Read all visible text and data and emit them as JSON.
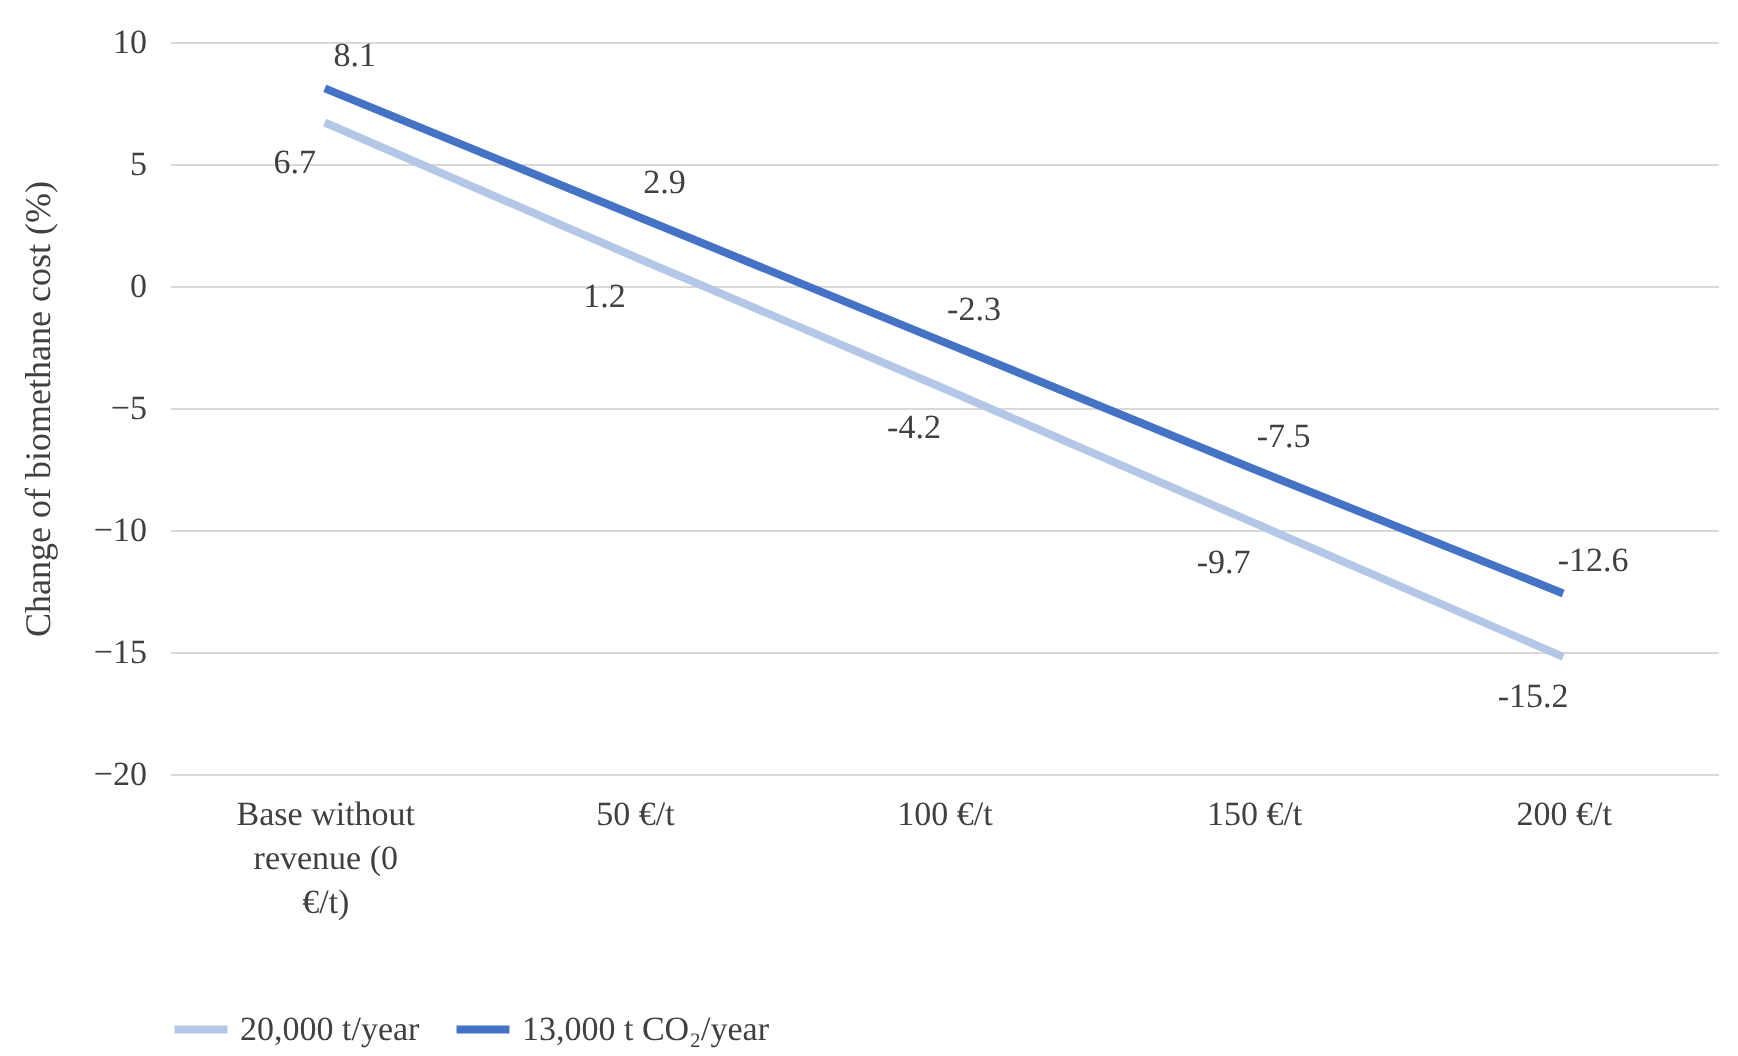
{
  "chart_data": {
    "type": "line",
    "ylabel": "Change of biomethane cost (%)",
    "categories": [
      "Base without revenue (0 €/t)",
      "50 €/t",
      "100 €/t",
      "150 €/t",
      "200 €/t"
    ],
    "series": [
      {
        "name": "20,000 t/year",
        "color": "#b4c7e7",
        "values": [
          6.7,
          1.2,
          -4.2,
          -9.7,
          -15.2
        ]
      },
      {
        "name": "13,000 t CO₂/year",
        "color": "#4472c4",
        "values": [
          8.1,
          2.9,
          -2.3,
          -7.5,
          -12.6
        ]
      }
    ],
    "ylim": [
      -20,
      10
    ],
    "yticks": [
      -20,
      -15,
      -10,
      -5,
      0,
      5,
      10
    ],
    "grid": "y",
    "legend": "bottom",
    "data_labels": true,
    "marker": "none",
    "line_style": "solid"
  }
}
